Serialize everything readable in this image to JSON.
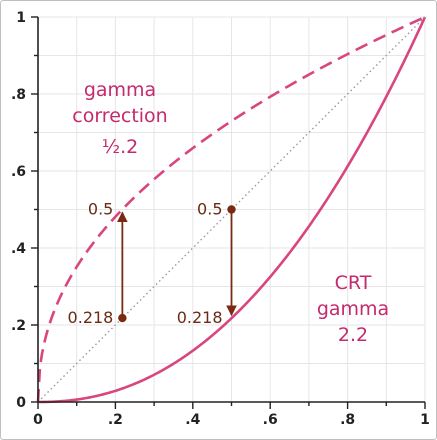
{
  "chart_data": {
    "type": "line",
    "title": "",
    "xlabel": "",
    "ylabel": "",
    "xlim": [
      0,
      1
    ],
    "ylim": [
      0,
      1
    ],
    "grid": true,
    "x_ticks": [
      "0",
      ".2",
      ".4",
      ".6",
      ".8",
      "1"
    ],
    "y_ticks": [
      "0",
      ".2",
      ".4",
      ".6",
      ".8",
      "1"
    ],
    "colors": {
      "curve": "#d9467f",
      "annotation": "#7a2a12",
      "identity": "#9a9a9a",
      "grid": "#e6e6e6",
      "series_label": "#c42a6e",
      "annotation_label": "#6b2a14"
    },
    "series": [
      {
        "labels": [
          "gamma",
          "correction",
          "½.2"
        ],
        "style": "dashed",
        "exponent": 0.4545,
        "x": [
          0,
          0.01,
          0.05,
          0.1,
          0.2,
          0.3,
          0.4,
          0.5,
          0.6,
          0.7,
          0.8,
          0.9,
          1.0
        ],
        "y": [
          0,
          0.123,
          0.256,
          0.351,
          0.481,
          0.579,
          0.659,
          0.73,
          0.793,
          0.85,
          0.903,
          0.953,
          1.0
        ]
      },
      {
        "labels": [
          "CRT",
          "gamma",
          "2.2"
        ],
        "style": "solid",
        "exponent": 2.2,
        "x": [
          0,
          0.1,
          0.2,
          0.3,
          0.4,
          0.5,
          0.6,
          0.7,
          0.8,
          0.9,
          1.0
        ],
        "y": [
          0,
          0.006,
          0.029,
          0.071,
          0.133,
          0.218,
          0.325,
          0.456,
          0.612,
          0.793,
          1.0
        ]
      },
      {
        "style": "dotted",
        "x": [
          0,
          1
        ],
        "y": [
          0,
          1
        ]
      }
    ],
    "annotations": [
      {
        "from": [
          0.218,
          0.218
        ],
        "to": [
          0.218,
          0.5
        ],
        "top_label": "0.5",
        "bottom_label": "0.218",
        "arrow": "up"
      },
      {
        "from": [
          0.5,
          0.5
        ],
        "to": [
          0.5,
          0.218
        ],
        "top_label": "0.5",
        "bottom_label": "0.218",
        "arrow": "down"
      }
    ]
  }
}
